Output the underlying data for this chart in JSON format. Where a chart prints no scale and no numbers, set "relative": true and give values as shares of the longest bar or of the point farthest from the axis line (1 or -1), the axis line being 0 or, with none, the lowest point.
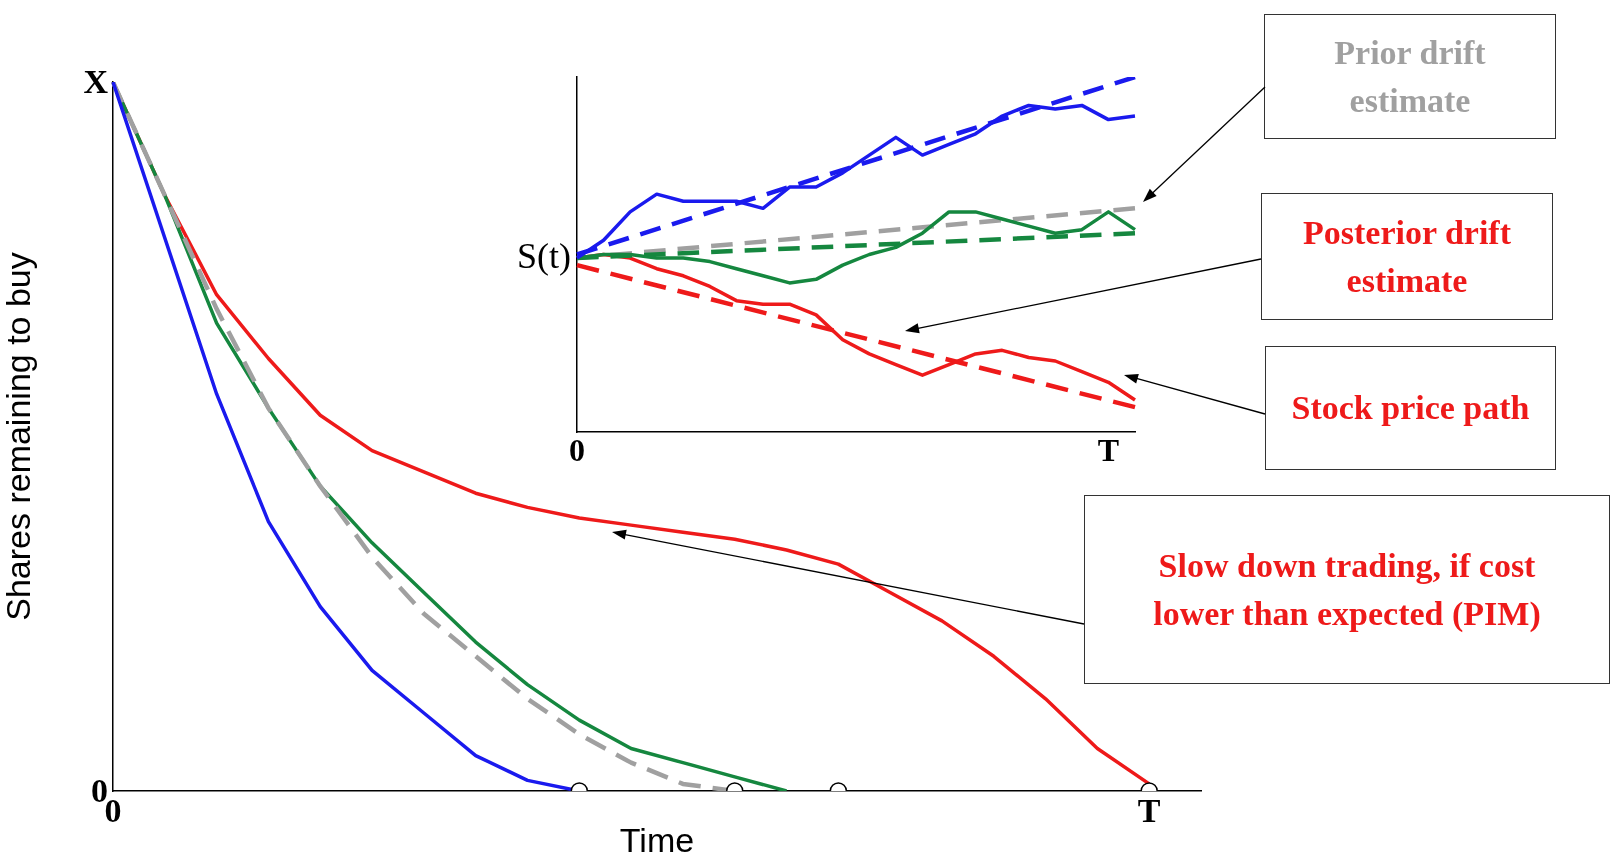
{
  "chart_data": [
    {
      "type": "line",
      "xlabel": "Time",
      "ylabel": "Shares remaining to buy",
      "relative": true,
      "grid": false,
      "legend": false,
      "marker": "none",
      "categories": [
        "0",
        null,
        null,
        null,
        null,
        null,
        null,
        null,
        null,
        null,
        null,
        null,
        null,
        null,
        null,
        null,
        null,
        null,
        null,
        null,
        "T",
        null
      ],
      "series": [
        {
          "color": "#1a1aee",
          "values": [
            1,
            0.78,
            0.56,
            0.38,
            0.26,
            0.17,
            0.11,
            0.05,
            0.015,
            0,
            null,
            null,
            null,
            null,
            null,
            null,
            null,
            null,
            null,
            null,
            null,
            null
          ]
        },
        {
          "color": "#a0a0a0",
          "line_style": "dashed",
          "values": [
            1,
            0.84,
            0.68,
            0.54,
            0.43,
            0.33,
            0.25,
            0.19,
            0.13,
            0.08,
            0.04,
            0.01,
            0,
            null,
            null,
            null,
            null,
            null,
            null,
            null,
            null,
            null
          ]
        },
        {
          "color": "#15873f",
          "values": [
            1,
            0.84,
            0.66,
            0.54,
            0.43,
            0.35,
            0.28,
            0.21,
            0.15,
            0.1,
            0.06,
            0.04,
            0.02,
            0,
            null,
            null,
            null,
            null,
            null,
            null,
            null,
            null
          ]
        },
        {
          "color": "#ee1a1a",
          "values": [
            1,
            0.84,
            0.7,
            0.61,
            0.53,
            0.48,
            0.45,
            0.42,
            0.4,
            0.385,
            0.375,
            0.365,
            0.355,
            0.34,
            0.32,
            0.28,
            0.24,
            0.19,
            0.13,
            0.06,
            0.01,
            null
          ]
        },
        {
          "type": "scatter",
          "marker": "circle",
          "color": "#000000",
          "values": [
            null,
            null,
            null,
            null,
            null,
            null,
            null,
            null,
            null,
            0,
            null,
            null,
            0,
            null,
            0,
            null,
            null,
            null,
            null,
            null,
            0,
            null
          ]
        }
      ],
      "annotations": [
        "X",
        "0",
        "Slow down trading, if cost lower than expected (PIM)"
      ]
    },
    {
      "type": "line",
      "ylabel": "S(t)",
      "relative": true,
      "grid": false,
      "legend": false,
      "marker": "none",
      "categories": [
        "0",
        null,
        null,
        null,
        null,
        null,
        null,
        null,
        null,
        null,
        null,
        null,
        null,
        null,
        null,
        null,
        null,
        null,
        null,
        null,
        "T",
        null
      ],
      "series": [
        {
          "color": "#1a1aee",
          "values": [
            0.49,
            0.54,
            0.62,
            0.67,
            0.65,
            0.65,
            0.65,
            0.63,
            0.69,
            0.69,
            0.73,
            0.78,
            0.83,
            0.78,
            0.81,
            0.84,
            0.89,
            0.92,
            0.91,
            0.92,
            0.88,
            0.89
          ]
        },
        {
          "color": "#1a1aee",
          "line_style": "dashed",
          "values": [
            0.5,
            null,
            null,
            null,
            null,
            null,
            null,
            null,
            null,
            null,
            null,
            null,
            null,
            null,
            null,
            null,
            null,
            null,
            null,
            null,
            null,
            1
          ]
        },
        {
          "color": "#15873f",
          "values": [
            0.49,
            0.5,
            0.5,
            0.49,
            0.49,
            0.48,
            0.46,
            0.44,
            0.42,
            0.43,
            0.47,
            0.5,
            0.52,
            0.56,
            0.62,
            0.62,
            0.6,
            0.58,
            0.56,
            0.57,
            0.62,
            0.57
          ]
        },
        {
          "color": "#15873f",
          "line_style": "dashed",
          "values": [
            0.49,
            null,
            null,
            null,
            null,
            null,
            null,
            null,
            null,
            null,
            null,
            null,
            null,
            null,
            null,
            null,
            null,
            null,
            null,
            null,
            null,
            0.56
          ]
        },
        {
          "color": "#a0a0a0",
          "line_style": "dashed",
          "values": [
            0.49,
            null,
            null,
            null,
            null,
            null,
            null,
            null,
            null,
            null,
            null,
            null,
            null,
            null,
            null,
            null,
            null,
            null,
            null,
            null,
            null,
            0.63
          ]
        },
        {
          "color": "#ee1a1a",
          "values": [
            0.49,
            0.5,
            0.49,
            0.46,
            0.44,
            0.41,
            0.37,
            0.36,
            0.36,
            0.33,
            0.26,
            0.22,
            0.19,
            0.16,
            0.19,
            0.22,
            0.23,
            0.21,
            0.2,
            0.17,
            0.14,
            0.09
          ]
        },
        {
          "color": "#ee1a1a",
          "line_style": "dashed",
          "values": [
            0.47,
            null,
            null,
            null,
            null,
            null,
            null,
            null,
            null,
            null,
            null,
            null,
            null,
            null,
            null,
            null,
            null,
            null,
            null,
            null,
            null,
            0.07
          ]
        }
      ],
      "annotations": [
        "Prior drift estimate",
        "Posterior drift estimate",
        "Stock price path"
      ]
    }
  ]
}
